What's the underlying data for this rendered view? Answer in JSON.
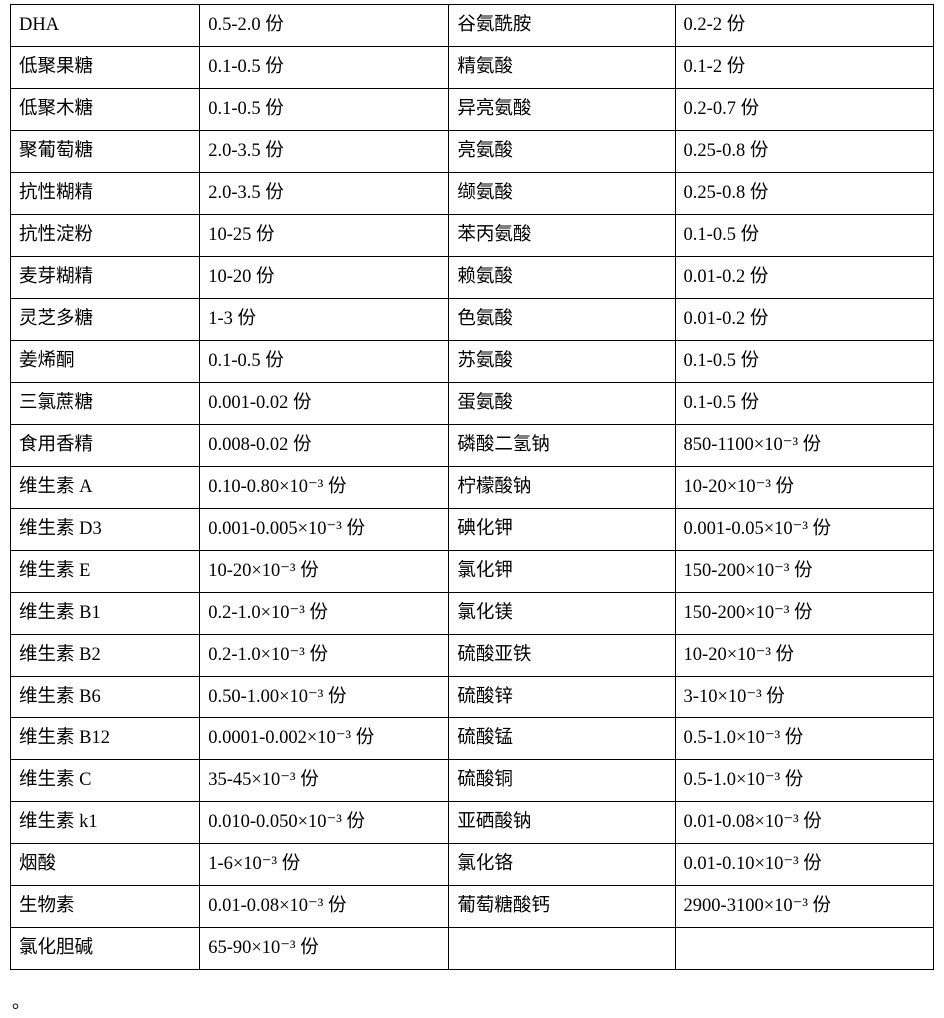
{
  "table": {
    "columns": 4,
    "rows": [
      [
        "DHA",
        "0.5-2.0 份",
        "谷氨酰胺",
        "0.2-2 份"
      ],
      [
        "低聚果糖",
        "0.1-0.5 份",
        "精氨酸",
        "0.1-2 份"
      ],
      [
        "低聚木糖",
        "0.1-0.5 份",
        "异亮氨酸",
        "0.2-0.7 份"
      ],
      [
        "聚葡萄糖",
        "2.0-3.5 份",
        "亮氨酸",
        "0.25-0.8 份"
      ],
      [
        "抗性糊精",
        "2.0-3.5 份",
        "缬氨酸",
        "0.25-0.8 份"
      ],
      [
        "抗性淀粉",
        "10-25 份",
        "苯丙氨酸",
        "0.1-0.5 份"
      ],
      [
        "麦芽糊精",
        "10-20 份",
        "赖氨酸",
        "0.01-0.2 份"
      ],
      [
        "灵芝多糖",
        "1-3 份",
        "色氨酸",
        "0.01-0.2 份"
      ],
      [
        "姜烯酮",
        "0.1-0.5 份",
        "苏氨酸",
        "0.1-0.5 份"
      ],
      [
        "三氯蔗糖",
        "0.001-0.02 份",
        "蛋氨酸",
        "0.1-0.5 份"
      ],
      [
        "食用香精",
        "0.008-0.02 份",
        "磷酸二氢钠",
        "850-1100×10⁻³ 份"
      ],
      [
        "维生素 A",
        "0.10-0.80×10⁻³ 份",
        "柠檬酸钠",
        "10-20×10⁻³ 份"
      ],
      [
        "维生素 D3",
        "0.001-0.005×10⁻³ 份",
        "碘化钾",
        "0.001-0.05×10⁻³ 份"
      ],
      [
        "维生素 E",
        "10-20×10⁻³ 份",
        "氯化钾",
        "150-200×10⁻³ 份"
      ],
      [
        "维生素 B1",
        "0.2-1.0×10⁻³ 份",
        "氯化镁",
        "150-200×10⁻³ 份"
      ],
      [
        "维生素 B2",
        "0.2-1.0×10⁻³ 份",
        "硫酸亚铁",
        "10-20×10⁻³ 份"
      ],
      [
        "维生素 B6",
        "0.50-1.00×10⁻³ 份",
        "硫酸锌",
        "3-10×10⁻³ 份"
      ],
      [
        "维生素 B12",
        "0.0001-0.002×10⁻³ 份",
        "硫酸锰",
        "0.5-1.0×10⁻³ 份"
      ],
      [
        "维生素 C",
        "35-45×10⁻³ 份",
        "硫酸铜",
        "0.5-1.0×10⁻³ 份"
      ],
      [
        "维生素 k1",
        "0.010-0.050×10⁻³ 份",
        "亚硒酸钠",
        "0.01-0.08×10⁻³ 份"
      ],
      [
        "烟酸",
        "1-6×10⁻³ 份",
        "氯化铬",
        "0.01-0.10×10⁻³ 份"
      ],
      [
        "生物素",
        "0.01-0.08×10⁻³ 份",
        "葡萄糖酸钙",
        "2900-3100×10⁻³ 份"
      ],
      [
        "氯化胆碱",
        "65-90×10⁻³ 份",
        "",
        ""
      ]
    ]
  },
  "footer_mark": "。",
  "style": {
    "font_family": "SimSun",
    "font_size_pt": 14,
    "border_color": "#000000",
    "background_color": "#ffffff",
    "text_color": "#000000"
  }
}
